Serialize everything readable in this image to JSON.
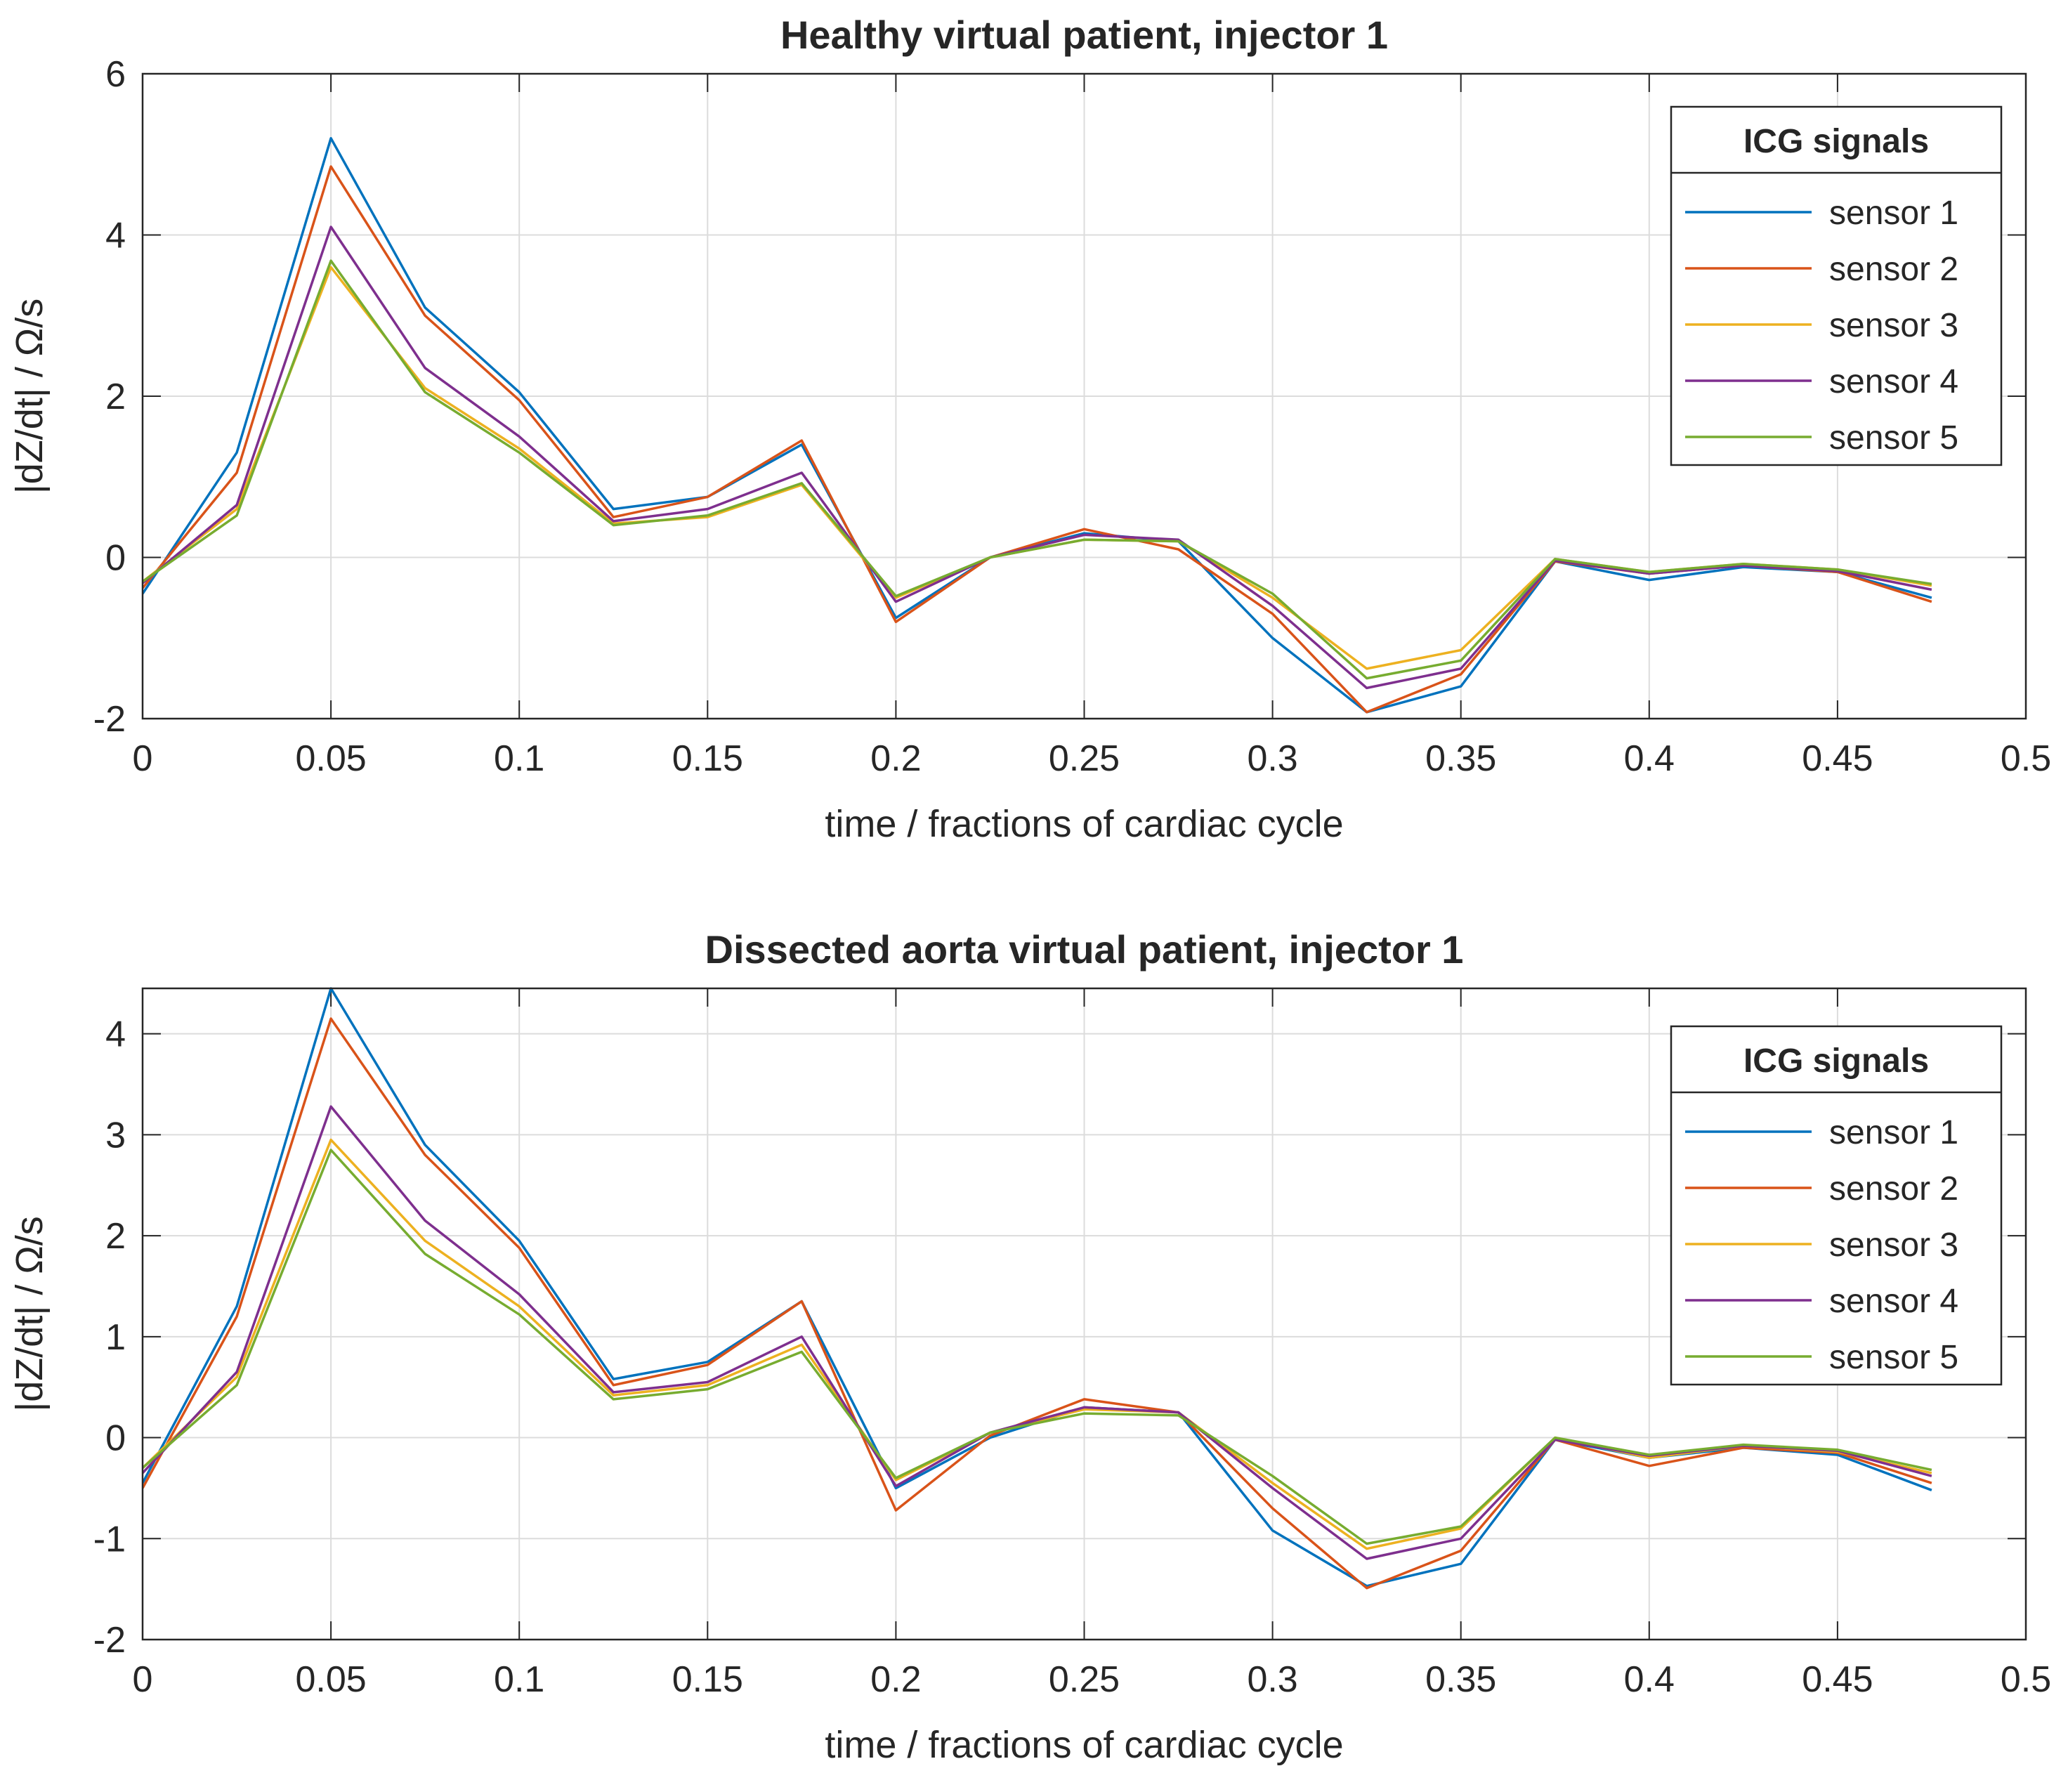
{
  "chart_data": [
    {
      "type": "line",
      "title": "Healthy virtual patient, injector 1",
      "xlabel": "time / fractions of cardiac cycle",
      "ylabel": "|dZ/dt| / Ω/s",
      "xlim": [
        0,
        0.5
      ],
      "ylim": [
        -2,
        6
      ],
      "xticks": [
        0,
        0.05,
        0.1,
        0.15,
        0.2,
        0.25,
        0.3,
        0.35,
        0.4,
        0.45,
        0.5
      ],
      "xtick_labels": [
        "0",
        "0.05",
        "0.1",
        "0.15",
        "0.2",
        "0.25",
        "0.3",
        "0.35",
        "0.4",
        "0.45",
        "0.5"
      ],
      "yticks": [
        -2,
        0,
        2,
        4,
        6
      ],
      "ytick_labels": [
        "-2",
        "0",
        "2",
        "4",
        "6"
      ],
      "grid": true,
      "legend": {
        "title": "ICG signals",
        "position": "top-right"
      },
      "x": [
        0,
        0.025,
        0.05,
        0.075,
        0.1,
        0.125,
        0.15,
        0.175,
        0.2,
        0.225,
        0.25,
        0.275,
        0.3,
        0.325,
        0.35,
        0.375,
        0.4,
        0.425,
        0.45,
        0.475
      ],
      "series": [
        {
          "name": "sensor 1",
          "color": "#0072BD",
          "values": [
            -0.45,
            1.3,
            5.2,
            3.1,
            2.05,
            0.6,
            0.75,
            1.4,
            -0.75,
            0,
            0.3,
            0.2,
            -1.0,
            -1.92,
            -1.6,
            -0.05,
            -0.28,
            -0.12,
            -0.18,
            -0.5
          ]
        },
        {
          "name": "sensor 2",
          "color": "#D95319",
          "values": [
            -0.38,
            1.05,
            4.85,
            3.0,
            1.95,
            0.5,
            0.75,
            1.45,
            -0.8,
            0,
            0.35,
            0.1,
            -0.7,
            -1.92,
            -1.45,
            -0.05,
            -0.2,
            -0.1,
            -0.18,
            -0.55
          ]
        },
        {
          "name": "sensor 3",
          "color": "#EDB120",
          "values": [
            -0.3,
            0.6,
            3.6,
            2.1,
            1.35,
            0.42,
            0.5,
            0.9,
            -0.5,
            0,
            0.22,
            0.2,
            -0.5,
            -1.38,
            -1.15,
            -0.02,
            -0.18,
            -0.08,
            -0.15,
            -0.35
          ]
        },
        {
          "name": "sensor 4",
          "color": "#7E2F8E",
          "values": [
            -0.32,
            0.65,
            4.1,
            2.35,
            1.5,
            0.45,
            0.6,
            1.05,
            -0.55,
            0,
            0.28,
            0.22,
            -0.6,
            -1.62,
            -1.38,
            -0.04,
            -0.2,
            -0.1,
            -0.17,
            -0.4
          ]
        },
        {
          "name": "sensor 5",
          "color": "#77AC30",
          "values": [
            -0.3,
            0.52,
            3.68,
            2.05,
            1.3,
            0.4,
            0.52,
            0.92,
            -0.48,
            0,
            0.22,
            0.2,
            -0.45,
            -1.5,
            -1.28,
            -0.02,
            -0.18,
            -0.08,
            -0.15,
            -0.33
          ]
        }
      ]
    },
    {
      "type": "line",
      "title": "Dissected aorta virtual patient, injector 1",
      "xlabel": "time / fractions of cardiac cycle",
      "ylabel": "|dZ/dt| / Ω/s",
      "xlim": [
        0,
        0.5
      ],
      "ylim": [
        -2,
        4.45
      ],
      "xticks": [
        0,
        0.05,
        0.1,
        0.15,
        0.2,
        0.25,
        0.3,
        0.35,
        0.4,
        0.45,
        0.5
      ],
      "xtick_labels": [
        "0",
        "0.05",
        "0.1",
        "0.15",
        "0.2",
        "0.25",
        "0.3",
        "0.35",
        "0.4",
        "0.45",
        "0.5"
      ],
      "yticks": [
        -2,
        -1,
        0,
        1,
        2,
        3,
        4
      ],
      "ytick_labels": [
        "-2",
        "-1",
        "0",
        "1",
        "2",
        "3",
        "4"
      ],
      "grid": true,
      "legend": {
        "title": "ICG signals",
        "position": "top-right"
      },
      "x": [
        0,
        0.025,
        0.05,
        0.075,
        0.1,
        0.125,
        0.15,
        0.175,
        0.2,
        0.225,
        0.25,
        0.275,
        0.3,
        0.325,
        0.35,
        0.375,
        0.4,
        0.425,
        0.45,
        0.475
      ],
      "series": [
        {
          "name": "sensor 1",
          "color": "#0072BD",
          "values": [
            -0.45,
            1.3,
            4.45,
            2.9,
            1.95,
            0.58,
            0.75,
            1.35,
            -0.5,
            0,
            0.3,
            0.25,
            -0.92,
            -1.47,
            -1.25,
            -0.02,
            -0.2,
            -0.1,
            -0.17,
            -0.52
          ]
        },
        {
          "name": "sensor 2",
          "color": "#D95319",
          "values": [
            -0.5,
            1.2,
            4.15,
            2.8,
            1.88,
            0.52,
            0.72,
            1.35,
            -0.72,
            0.02,
            0.38,
            0.25,
            -0.7,
            -1.49,
            -1.12,
            -0.02,
            -0.28,
            -0.1,
            -0.15,
            -0.45
          ]
        },
        {
          "name": "sensor 3",
          "color": "#EDB120",
          "values": [
            -0.3,
            0.6,
            2.95,
            1.95,
            1.3,
            0.42,
            0.52,
            0.92,
            -0.42,
            0.05,
            0.28,
            0.25,
            -0.45,
            -1.1,
            -0.9,
            0,
            -0.2,
            -0.08,
            -0.14,
            -0.35
          ]
        },
        {
          "name": "sensor 4",
          "color": "#7E2F8E",
          "values": [
            -0.35,
            0.65,
            3.28,
            2.15,
            1.42,
            0.45,
            0.55,
            1.0,
            -0.48,
            0.05,
            0.3,
            0.25,
            -0.5,
            -1.2,
            -1.0,
            -0.02,
            -0.18,
            -0.08,
            -0.13,
            -0.38
          ]
        },
        {
          "name": "sensor 5",
          "color": "#77AC30",
          "values": [
            -0.3,
            0.52,
            2.85,
            1.82,
            1.22,
            0.38,
            0.48,
            0.85,
            -0.4,
            0.05,
            0.24,
            0.22,
            -0.38,
            -1.05,
            -0.88,
            0,
            -0.17,
            -0.07,
            -0.12,
            -0.32
          ]
        }
      ]
    }
  ]
}
